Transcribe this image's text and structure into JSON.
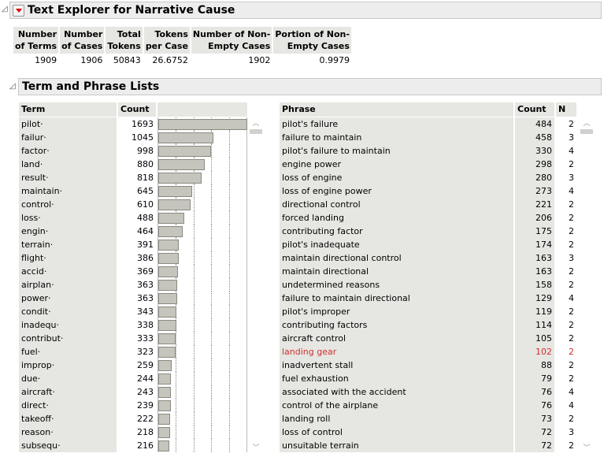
{
  "title": "Text Explorer for Narrative Cause",
  "summary": {
    "headers": [
      [
        "Number",
        "of Terms"
      ],
      [
        "Number",
        "of Cases"
      ],
      [
        "Total",
        "Tokens"
      ],
      [
        "Tokens",
        "per Case"
      ],
      [
        "Number of Non-",
        "Empty Cases"
      ],
      [
        "Portion of Non-",
        "Empty Cases"
      ]
    ],
    "values": [
      "1909",
      "1906",
      "50843",
      "26.6752",
      "1902",
      "0.9979"
    ]
  },
  "lists_title": "Term and Phrase Lists",
  "terms": {
    "headers": [
      "Term",
      "Count"
    ],
    "rows": [
      [
        "pilot·",
        1693
      ],
      [
        "failur·",
        1045
      ],
      [
        "factor·",
        998
      ],
      [
        "land·",
        880
      ],
      [
        "result·",
        818
      ],
      [
        "maintain·",
        645
      ],
      [
        "control·",
        610
      ],
      [
        "loss·",
        488
      ],
      [
        "engin·",
        464
      ],
      [
        "terrain·",
        391
      ],
      [
        "flight·",
        386
      ],
      [
        "accid·",
        369
      ],
      [
        "airplan·",
        363
      ],
      [
        "power·",
        363
      ],
      [
        "condit·",
        343
      ],
      [
        "inadequ·",
        338
      ],
      [
        "contribut·",
        333
      ],
      [
        "fuel·",
        323
      ],
      [
        "improp·",
        259
      ],
      [
        "due·",
        244
      ],
      [
        "aircraft·",
        243
      ],
      [
        "direct·",
        239
      ],
      [
        "takeoff·",
        222
      ],
      [
        "reason·",
        218
      ],
      [
        "subsequ·",
        216
      ]
    ]
  },
  "phrases": {
    "headers": [
      "Phrase",
      "Count",
      "N"
    ],
    "rows": [
      [
        "pilot's failure",
        484,
        2
      ],
      [
        "failure to maintain",
        458,
        3
      ],
      [
        "pilot's failure to maintain",
        330,
        4
      ],
      [
        "engine power",
        298,
        2
      ],
      [
        "loss of engine",
        280,
        3
      ],
      [
        "loss of engine power",
        273,
        4
      ],
      [
        "directional control",
        221,
        2
      ],
      [
        "forced landing",
        206,
        2
      ],
      [
        "contributing factor",
        175,
        2
      ],
      [
        "pilot's inadequate",
        174,
        2
      ],
      [
        "maintain directional control",
        163,
        3
      ],
      [
        "maintain directional",
        163,
        2
      ],
      [
        "undetermined reasons",
        158,
        2
      ],
      [
        "failure to maintain directional",
        129,
        4
      ],
      [
        "pilot's improper",
        119,
        2
      ],
      [
        "contributing factors",
        114,
        2
      ],
      [
        "aircraft control",
        105,
        2
      ],
      [
        "landing gear",
        102,
        2
      ],
      [
        "inadvertent stall",
        88,
        2
      ],
      [
        "fuel exhaustion",
        79,
        2
      ],
      [
        "associated with the accident",
        76,
        4
      ],
      [
        "control of the airplane",
        76,
        4
      ],
      [
        "landing roll",
        73,
        2
      ],
      [
        "loss of control",
        72,
        3
      ],
      [
        "unsuitable terrain",
        72,
        2
      ]
    ],
    "highlighted_row": 17,
    "highlight_color": "#d03030"
  }
}
